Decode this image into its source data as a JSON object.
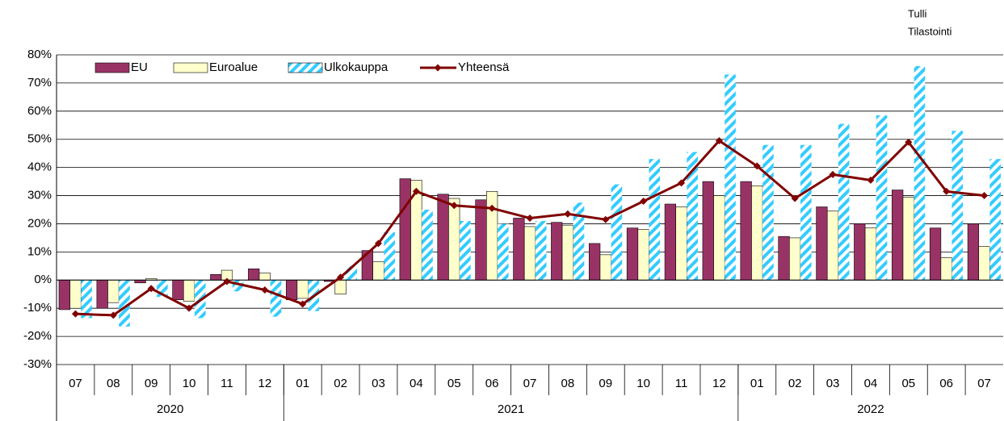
{
  "chart_data": {
    "type": "bar_line",
    "annotations": [
      "Tulli",
      "Tilastointi"
    ],
    "categories": [
      "07",
      "08",
      "09",
      "10",
      "11",
      "12",
      "01",
      "02",
      "03",
      "04",
      "05",
      "06",
      "07",
      "08",
      "09",
      "10",
      "11",
      "12",
      "01",
      "02",
      "03",
      "04",
      "05",
      "06",
      "07"
    ],
    "groups": [
      {
        "label": "2020",
        "span": 6
      },
      {
        "label": "2021",
        "span": 12
      },
      {
        "label": "2022",
        "span": 7
      }
    ],
    "ylim": [
      -30,
      80
    ],
    "yticks": [
      {
        "value": -30,
        "label": "-30%"
      },
      {
        "value": -20,
        "label": "-20%"
      },
      {
        "value": -10,
        "label": "-10%"
      },
      {
        "value": 0,
        "label": "0%"
      },
      {
        "value": 10,
        "label": "10%"
      },
      {
        "value": 20,
        "label": "20%"
      },
      {
        "value": 30,
        "label": "30%"
      },
      {
        "value": 40,
        "label": "40%"
      },
      {
        "value": 50,
        "label": "50%"
      },
      {
        "value": 60,
        "label": "60%"
      },
      {
        "value": 70,
        "label": "70%"
      },
      {
        "value": 80,
        "label": "80%"
      }
    ],
    "grid": true,
    "legend": "top-left",
    "series": [
      {
        "name": "EU",
        "kind": "bar",
        "color": "#993366",
        "values": [
          -10.5,
          -10,
          -1,
          -7,
          2,
          4,
          -7,
          -0.5,
          10.5,
          36,
          30.5,
          28.5,
          22,
          20.5,
          13,
          18.5,
          27,
          35,
          35,
          15.5,
          26,
          20,
          32,
          18.5,
          20
        ]
      },
      {
        "name": "Euroalue",
        "kind": "bar",
        "color": "#ffffcc",
        "values": [
          -10,
          -8,
          0.5,
          -7.5,
          3.5,
          2.5,
          -6.5,
          -5,
          6.5,
          35.5,
          29,
          31.5,
          19,
          19.5,
          9,
          18,
          26,
          30,
          33.5,
          15,
          24.5,
          18.5,
          29.5,
          8,
          12
        ]
      },
      {
        "name": "Ulkokauppa",
        "kind": "hatched-bar",
        "color": "#33ccff",
        "values": [
          -13.5,
          -16.5,
          -6,
          -13.5,
          -4,
          -13,
          -11,
          5,
          17,
          25,
          21,
          20,
          21,
          27.5,
          34,
          43,
          45.5,
          73,
          48,
          48,
          55.5,
          58.5,
          76,
          53,
          43
        ]
      },
      {
        "name": "Yhteensä",
        "kind": "line",
        "color": "#800000",
        "values": [
          -12,
          -12.5,
          -3,
          -10,
          -0.5,
          -3.5,
          -8.5,
          1,
          13,
          31.5,
          26.5,
          25.5,
          22,
          23.5,
          21.5,
          28,
          34.5,
          49.5,
          40.5,
          29,
          37.5,
          35.5,
          49,
          31.5,
          30
        ]
      }
    ]
  }
}
